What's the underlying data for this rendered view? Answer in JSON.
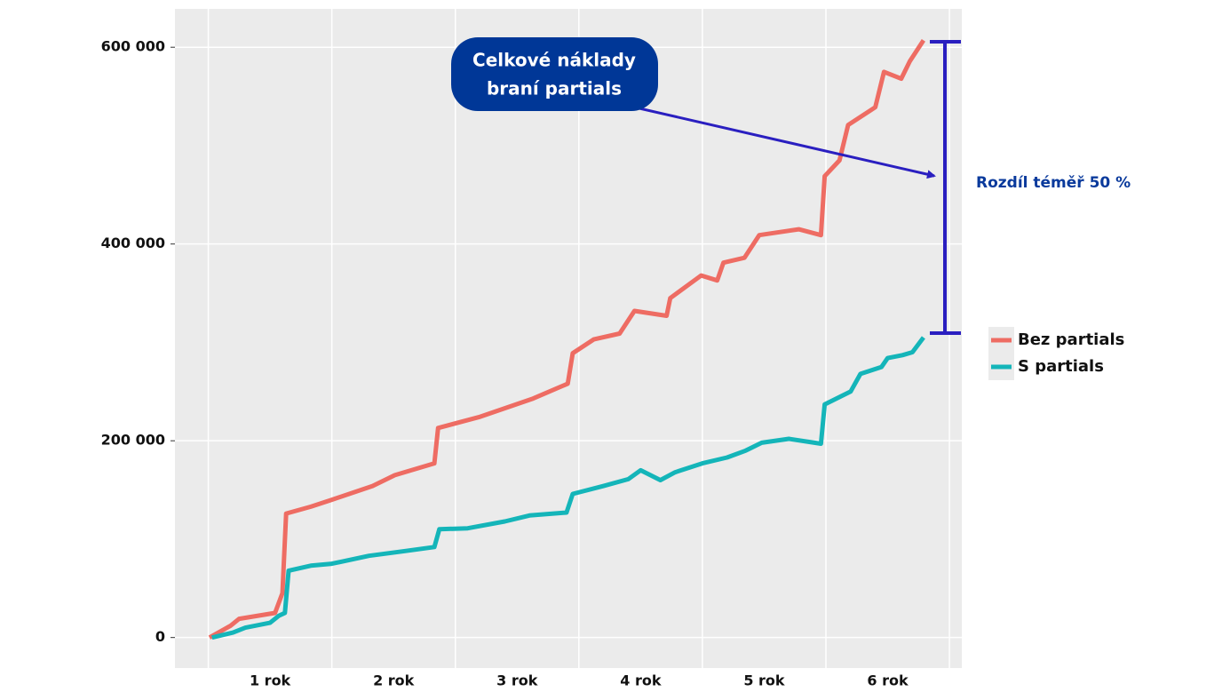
{
  "chart_data": {
    "type": "line",
    "xlim": [
      -0.27,
      6.1
    ],
    "xticks": [
      {
        "value": 0.5,
        "label": "1 rok"
      },
      {
        "value": 1.5,
        "label": "2 rok"
      },
      {
        "value": 2.5,
        "label": "3 rok"
      },
      {
        "value": 3.5,
        "label": "4 rok"
      },
      {
        "value": 4.5,
        "label": "5 rok"
      },
      {
        "value": 5.5,
        "label": "6 rok"
      }
    ],
    "ylim": [
      -31000,
      639000
    ],
    "yticks": [
      {
        "value": 0,
        "label": "0"
      },
      {
        "value": 200000,
        "label": "200 000"
      },
      {
        "value": 400000,
        "label": "400 000"
      },
      {
        "value": 600000,
        "label": "600 000"
      }
    ],
    "grid": true,
    "legend": "right",
    "series": [
      {
        "name": "Bez partials",
        "color": "#ee6c63",
        "x": [
          0.01,
          0.18,
          0.25,
          0.54,
          0.6,
          0.63,
          0.83,
          1.0,
          1.33,
          1.51,
          1.83,
          1.86,
          2.19,
          2.63,
          2.91,
          2.95,
          3.12,
          3.33,
          3.45,
          3.71,
          3.74,
          3.99,
          4.12,
          4.17,
          4.34,
          4.46,
          4.78,
          4.96,
          4.99,
          5.11,
          5.18,
          5.4,
          5.47,
          5.61,
          5.68,
          5.79
        ],
        "values": [
          0,
          12000,
          19000,
          25000,
          45000,
          126000,
          133000,
          140000,
          154000,
          165000,
          177000,
          213000,
          224000,
          243000,
          258000,
          289000,
          303000,
          309000,
          332000,
          327000,
          345000,
          368000,
          363000,
          381000,
          386000,
          409000,
          415000,
          409000,
          469000,
          485000,
          521000,
          539000,
          575000,
          568000,
          586000,
          607000
        ]
      },
      {
        "name": "S partials",
        "color": "#14b5b9",
        "x": [
          0.03,
          0.2,
          0.3,
          0.5,
          0.57,
          0.62,
          0.65,
          0.83,
          1.0,
          1.3,
          1.6,
          1.83,
          1.87,
          2.1,
          2.4,
          2.6,
          2.9,
          2.95,
          3.2,
          3.4,
          3.5,
          3.66,
          3.78,
          4.0,
          4.2,
          4.35,
          4.48,
          4.7,
          4.96,
          4.99,
          5.2,
          5.28,
          5.45,
          5.5,
          5.62,
          5.7,
          5.79
        ],
        "values": [
          0,
          5000,
          10000,
          15000,
          22000,
          25000,
          68000,
          73000,
          75000,
          83000,
          88000,
          92000,
          110000,
          111000,
          118000,
          124000,
          127000,
          146000,
          154000,
          161000,
          170000,
          160000,
          168000,
          177000,
          183000,
          190000,
          198000,
          202000,
          197000,
          237000,
          250000,
          268000,
          275000,
          284000,
          287000,
          290000,
          305000
        ]
      }
    ],
    "annotations": {
      "callout": [
        "Celkové náklady",
        "braní partials"
      ],
      "difference": "Rozdíl téměř 50 %"
    }
  }
}
